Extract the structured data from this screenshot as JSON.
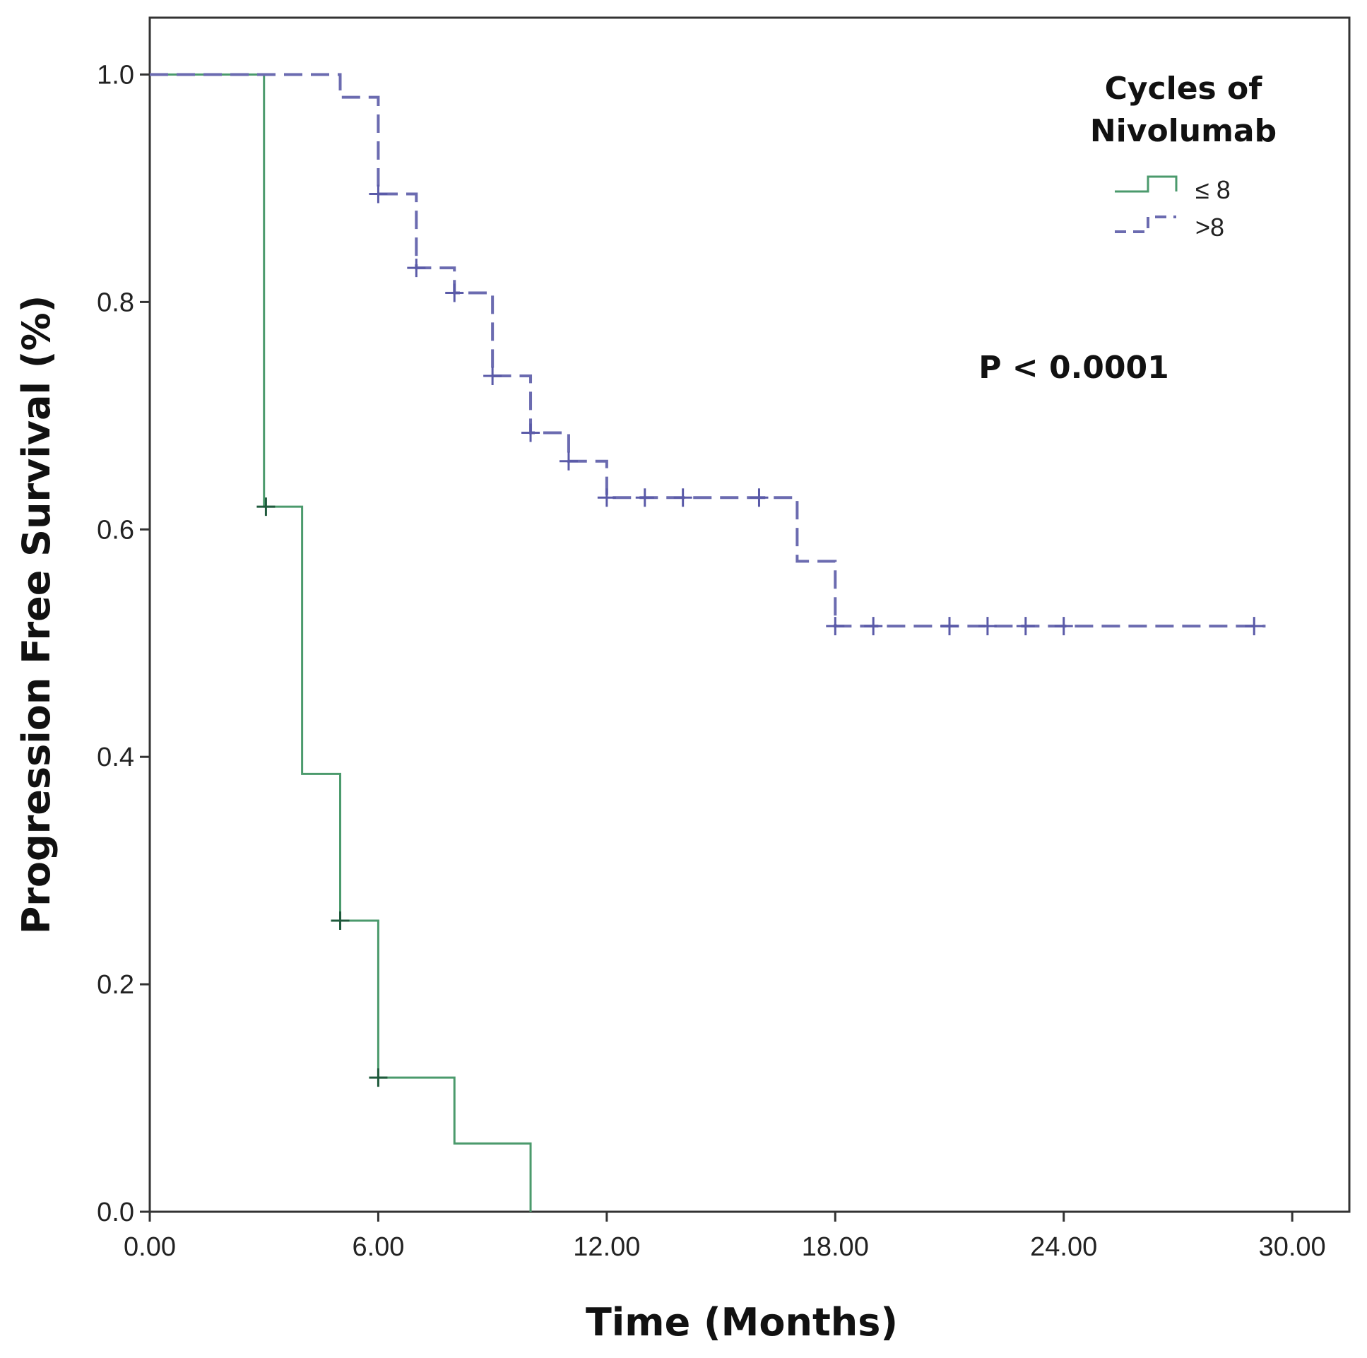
{
  "chart_data": {
    "type": "line",
    "subtype": "kaplan-meier step",
    "xlabel": "Time (Months)",
    "ylabel": "Progression Free Survival (%)",
    "xlim": [
      0,
      31.5
    ],
    "ylim": [
      0,
      1.05
    ],
    "x_ticks": [
      0,
      6,
      12,
      18,
      24,
      30
    ],
    "x_tick_labels": [
      "0.00",
      "6.00",
      "12.00",
      "18.00",
      "24.00",
      "30.00"
    ],
    "y_ticks": [
      0,
      0.2,
      0.4,
      0.6,
      0.8,
      1.0
    ],
    "y_tick_labels": [
      "0.0",
      "0.2",
      "0.4",
      "0.6",
      "0.8",
      "1.0"
    ],
    "legend": {
      "title": "Cycles of Nivolumab",
      "title_lines": [
        "Cycles of",
        "Nivolumab"
      ],
      "position": "top-right"
    },
    "annotation": "P < 0.0001",
    "series": [
      {
        "name": "≤ 8",
        "style": "solid",
        "color": "#4b9a6c",
        "censor_color": "#1f5a3c",
        "steps": [
          [
            0,
            1.0
          ],
          [
            3,
            0.62
          ],
          [
            4,
            0.385
          ],
          [
            5,
            0.256
          ],
          [
            6,
            0.118
          ],
          [
            8,
            0.06
          ],
          [
            10,
            0.0
          ]
        ],
        "end_time": 10,
        "censored": [
          [
            3.05,
            0.62
          ],
          [
            5.0,
            0.256
          ],
          [
            6.0,
            0.118
          ]
        ]
      },
      {
        "name": ">8",
        "style": "dashed",
        "color": "#6b6bb0",
        "censor_color": "#5a5aa8",
        "steps": [
          [
            0,
            1.0
          ],
          [
            5,
            0.98
          ],
          [
            6,
            0.895
          ],
          [
            7,
            0.83
          ],
          [
            8,
            0.808
          ],
          [
            9,
            0.735
          ],
          [
            10,
            0.685
          ],
          [
            11,
            0.66
          ],
          [
            12,
            0.628
          ],
          [
            17,
            0.572
          ],
          [
            18,
            0.515
          ]
        ],
        "end_time": 29.3,
        "censored": [
          [
            6.0,
            0.895
          ],
          [
            7.0,
            0.83
          ],
          [
            8.0,
            0.808
          ],
          [
            9.0,
            0.735
          ],
          [
            10.0,
            0.685
          ],
          [
            11.0,
            0.66
          ],
          [
            12.0,
            0.628
          ],
          [
            13.0,
            0.628
          ],
          [
            14.0,
            0.628
          ],
          [
            16.0,
            0.628
          ],
          [
            18.0,
            0.515
          ],
          [
            19.0,
            0.515
          ],
          [
            21.0,
            0.515
          ],
          [
            22.0,
            0.515
          ],
          [
            23.0,
            0.515
          ],
          [
            24.0,
            0.515
          ],
          [
            29.0,
            0.515
          ]
        ]
      }
    ]
  }
}
